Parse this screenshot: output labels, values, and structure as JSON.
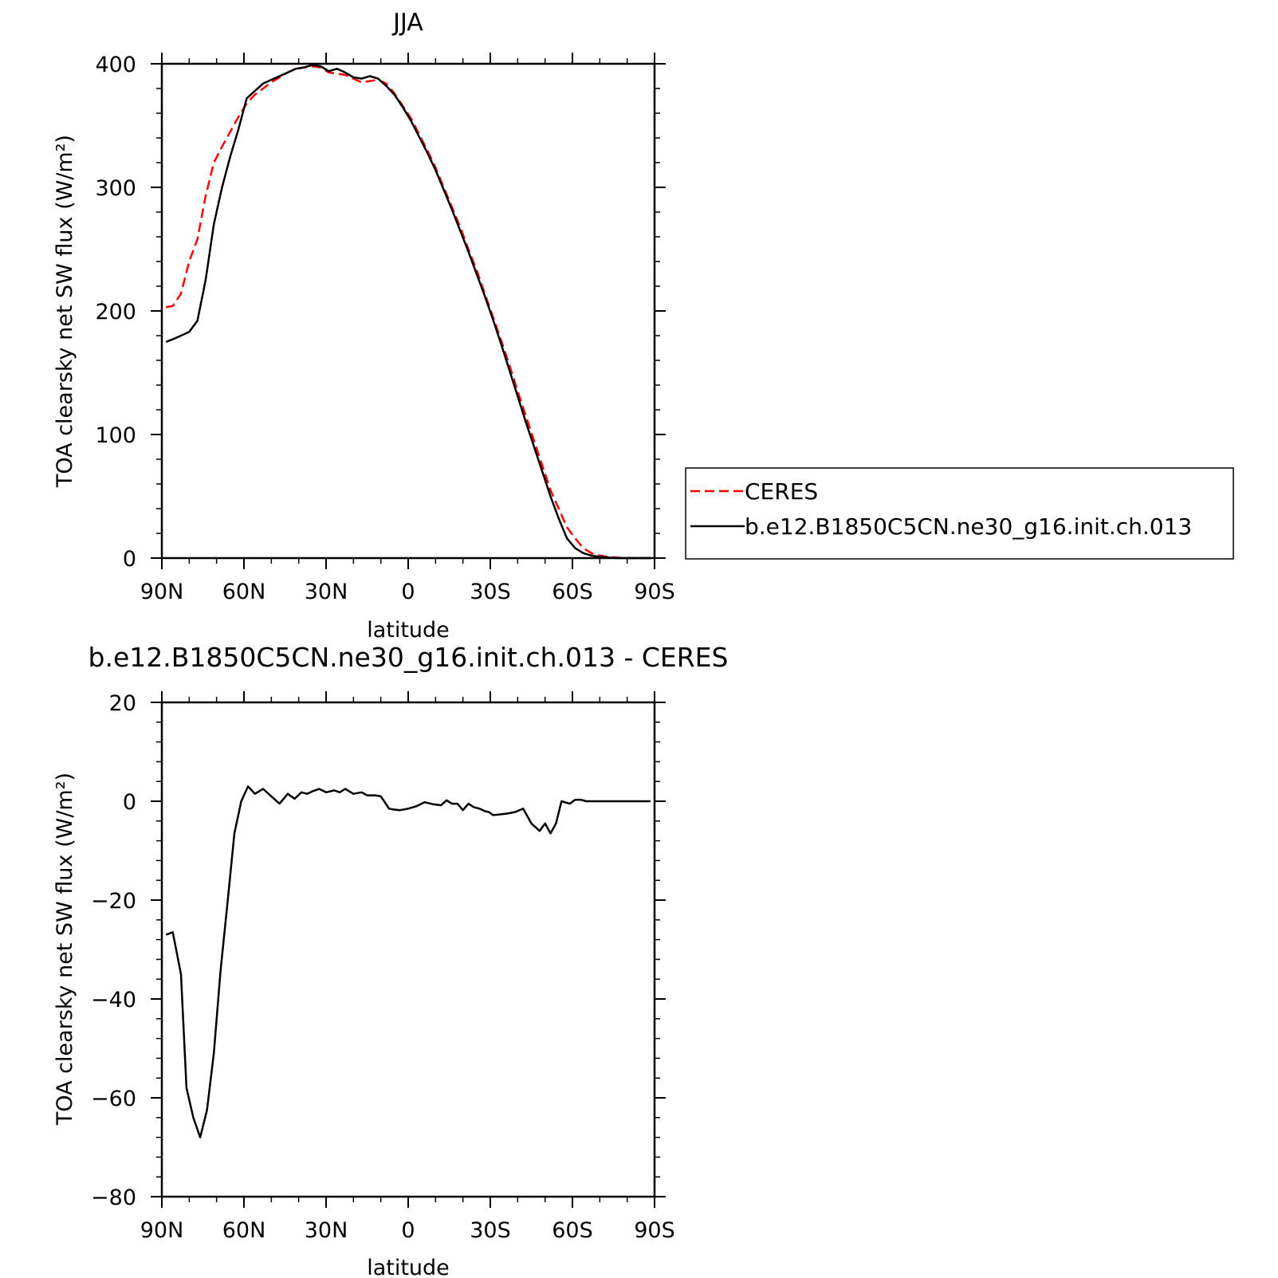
{
  "chart_data": [
    {
      "type": "line",
      "title": "JJA",
      "xlabel": "latitude",
      "ylabel": "TOA clearsky net SW flux (W/m²)",
      "xlim": [
        90,
        -90
      ],
      "ylim": [
        0,
        400
      ],
      "x_ticks": [
        90,
        60,
        30,
        0,
        -30,
        -60,
        -90
      ],
      "x_tick_labels": [
        "90N",
        "60N",
        "30N",
        "0",
        "30S",
        "60S",
        "90S"
      ],
      "y_ticks": [
        0,
        100,
        200,
        300,
        400
      ],
      "y_tick_labels": [
        "0",
        "100",
        "200",
        "300",
        "400"
      ],
      "legend": {
        "placement": "right",
        "entries": [
          "CERES",
          "b.e12.B1850C5CN.ne30_g16.init.ch.013"
        ]
      },
      "series": [
        {
          "name": "CERES",
          "color": "#ff0000",
          "dash": "dashed",
          "x": [
            88.5,
            86,
            83,
            80,
            77,
            74,
            71,
            68,
            65,
            62,
            59,
            56,
            53,
            50,
            47,
            44,
            41,
            38,
            35,
            32,
            29,
            26,
            23,
            20,
            17,
            14,
            11,
            8,
            5,
            2,
            -1,
            -4,
            -7,
            -10,
            -13,
            -16,
            -19,
            -22,
            -25,
            -28,
            -31,
            -34,
            -37,
            -40,
            -43,
            -46,
            -49,
            -52,
            -55,
            -58,
            -61,
            -64,
            -67,
            -70,
            -73,
            -76,
            -79,
            -82,
            -85,
            -88.5
          ],
          "y": [
            203,
            204,
            214,
            240,
            258,
            293,
            320,
            333,
            345,
            357,
            368,
            375,
            380,
            385,
            389,
            393,
            396,
            397,
            398,
            397,
            393,
            392,
            391,
            388,
            385,
            386,
            387,
            384,
            376,
            366,
            356,
            343,
            330,
            316,
            300,
            284,
            268,
            250,
            233,
            214,
            195,
            176,
            156,
            135,
            115,
            95,
            75,
            55,
            40,
            25,
            16,
            8,
            4,
            2,
            1,
            0.5,
            0,
            0,
            0,
            0
          ]
        },
        {
          "name": "b.e12.B1850C5CN.ne30_g16.init.ch.013",
          "color": "#000000",
          "dash": "solid",
          "x": [
            88.5,
            86,
            83,
            80,
            77,
            74,
            71,
            68,
            65,
            62,
            59,
            56,
            53,
            50,
            47,
            44,
            41,
            38,
            35,
            32,
            29,
            26,
            23,
            20,
            17,
            14,
            11,
            8,
            5,
            2,
            -1,
            -4,
            -7,
            -10,
            -13,
            -16,
            -19,
            -22,
            -25,
            -28,
            -31,
            -34,
            -37,
            -40,
            -43,
            -46,
            -49,
            -52,
            -55,
            -58,
            -61,
            -64,
            -67,
            -70,
            -73,
            -76,
            -79,
            -82,
            -85,
            -88.5
          ],
          "y": [
            175,
            177,
            180,
            183,
            192,
            225,
            270,
            300,
            325,
            347,
            372,
            378,
            384,
            387,
            390,
            393,
            396,
            397,
            399,
            398,
            394,
            396,
            393,
            389,
            388,
            390,
            388,
            382,
            375,
            365,
            354,
            341,
            328,
            314,
            298,
            282,
            265,
            248,
            230,
            212,
            193,
            173,
            152,
            131,
            110,
            90,
            70,
            50,
            32,
            16,
            8,
            4,
            2,
            1,
            0.5,
            0,
            0,
            0,
            0,
            0
          ]
        }
      ]
    },
    {
      "type": "line",
      "title": "b.e12.B1850C5CN.ne30_g16.init.ch.013 - CERES",
      "xlabel": "latitude",
      "ylabel": "TOA clearsky net SW flux (W/m²)",
      "xlim": [
        90,
        -90
      ],
      "ylim": [
        -80,
        20
      ],
      "x_ticks": [
        90,
        60,
        30,
        0,
        -30,
        -60,
        -90
      ],
      "x_tick_labels": [
        "90N",
        "60N",
        "30N",
        "0",
        "30S",
        "60S",
        "90S"
      ],
      "y_ticks": [
        -80,
        -60,
        -40,
        -20,
        0,
        20
      ],
      "y_tick_labels": [
        "−80",
        "−60",
        "−40",
        "−20",
        "0",
        "20"
      ],
      "series": [
        {
          "color": "#000000",
          "dash": "solid",
          "x": [
            88.5,
            86,
            83,
            81,
            78.5,
            76,
            73.5,
            71,
            68.5,
            66,
            63.5,
            61,
            58.5,
            56,
            53,
            50,
            47,
            44,
            41.5,
            39,
            37,
            35,
            32.5,
            30,
            27,
            25,
            23,
            20,
            17,
            15,
            12,
            10,
            7,
            5,
            3,
            0,
            -3,
            -6,
            -9,
            -12,
            -14,
            -16,
            -18,
            -20,
            -22,
            -24,
            -26,
            -28,
            -29.5,
            -31,
            -33,
            -36,
            -39,
            -42,
            -45,
            -48,
            -50,
            -52,
            -54,
            -56,
            -59,
            -61,
            -63,
            -65,
            -67,
            -69,
            -71,
            -73,
            -76,
            -80,
            -84,
            -88.5
          ],
          "y": [
            -27,
            -26.5,
            -35,
            -58,
            -64,
            -68,
            -62.5,
            -51,
            -34,
            -20.5,
            -6.5,
            0,
            3,
            1.5,
            2.5,
            1,
            -0.5,
            1.5,
            0.5,
            1.8,
            1.5,
            2,
            2.5,
            1.8,
            2.2,
            1.8,
            2.5,
            1.5,
            1.8,
            1.2,
            1.2,
            1,
            -1.5,
            -1.7,
            -1.8,
            -1.5,
            -1,
            -0.2,
            -0.6,
            -0.8,
            0.2,
            -0.5,
            -0.5,
            -1.8,
            -0.5,
            -1.2,
            -1.5,
            -2,
            -2.2,
            -2.8,
            -2.7,
            -2.5,
            -2.2,
            -1.5,
            -4.5,
            -6,
            -4.5,
            -6.5,
            -4.5,
            0,
            -0.5,
            0.3,
            0.3,
            0,
            0,
            0,
            0,
            0,
            0,
            0,
            0,
            0
          ]
        }
      ]
    }
  ]
}
